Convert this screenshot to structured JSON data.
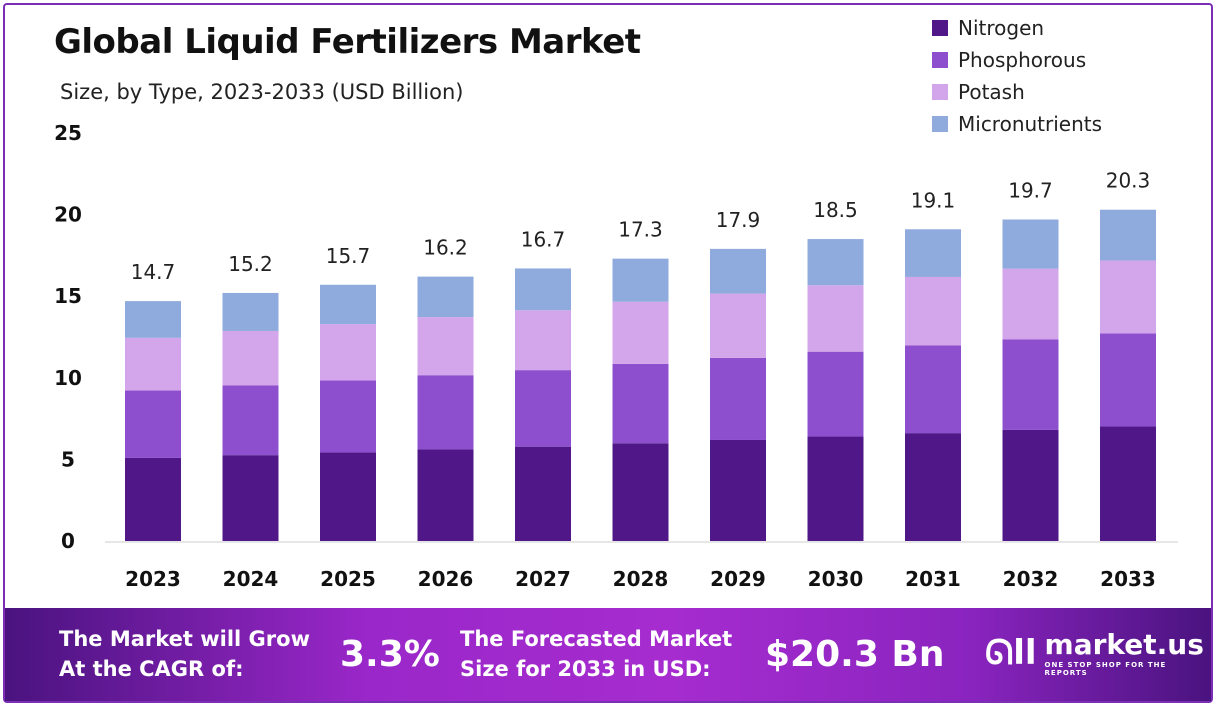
{
  "chart_data": {
    "type": "bar",
    "stacked": true,
    "title": "Global Liquid Fertilizers Market",
    "subtitle": "Size, by Type, 2023-2033 (USD Billion)",
    "categories": [
      "2023",
      "2024",
      "2025",
      "2026",
      "2027",
      "2028",
      "2029",
      "2030",
      "2031",
      "2032",
      "2033"
    ],
    "series": [
      {
        "name": "Nitrogen",
        "color": "#4f1787",
        "values": [
          5.09,
          5.26,
          5.43,
          5.61,
          5.78,
          5.99,
          6.19,
          6.4,
          6.61,
          6.82,
          7.02
        ]
      },
      {
        "name": "Phosphorous",
        "color": "#8e4fcf",
        "values": [
          4.13,
          4.27,
          4.41,
          4.55,
          4.69,
          4.86,
          5.03,
          5.2,
          5.37,
          5.54,
          5.7
        ]
      },
      {
        "name": "Potash",
        "color": "#d3a5ea",
        "values": [
          3.23,
          3.34,
          3.45,
          3.56,
          3.67,
          3.81,
          3.94,
          4.07,
          4.2,
          4.33,
          4.47
        ]
      },
      {
        "name": "Micronutrients",
        "color": "#8faadc",
        "values": [
          2.25,
          2.33,
          2.41,
          2.48,
          2.56,
          2.64,
          2.74,
          2.83,
          2.92,
          3.01,
          3.11
        ]
      }
    ],
    "totals": [
      "14.7",
      "15.2",
      "15.7",
      "16.2",
      "16.7",
      "17.3",
      "17.9",
      "18.5",
      "19.1",
      "19.7",
      "20.3"
    ],
    "yticks": [
      "0",
      "5",
      "10",
      "15",
      "20",
      "25"
    ],
    "ylim": [
      0,
      25
    ],
    "grid": false,
    "legend": "top-right"
  },
  "footer": {
    "cagr_label_1": "The Market will Grow",
    "cagr_label_2": "At the CAGR of:",
    "cagr_value": "3.3%",
    "forecast_label_1": "The Forecasted Market",
    "forecast_label_2": "Size for 2033 in USD:",
    "forecast_value": "$20.3 Bn",
    "logo_name": "market.us",
    "logo_tagline": "ONE STOP SHOP FOR THE REPORTS"
  }
}
